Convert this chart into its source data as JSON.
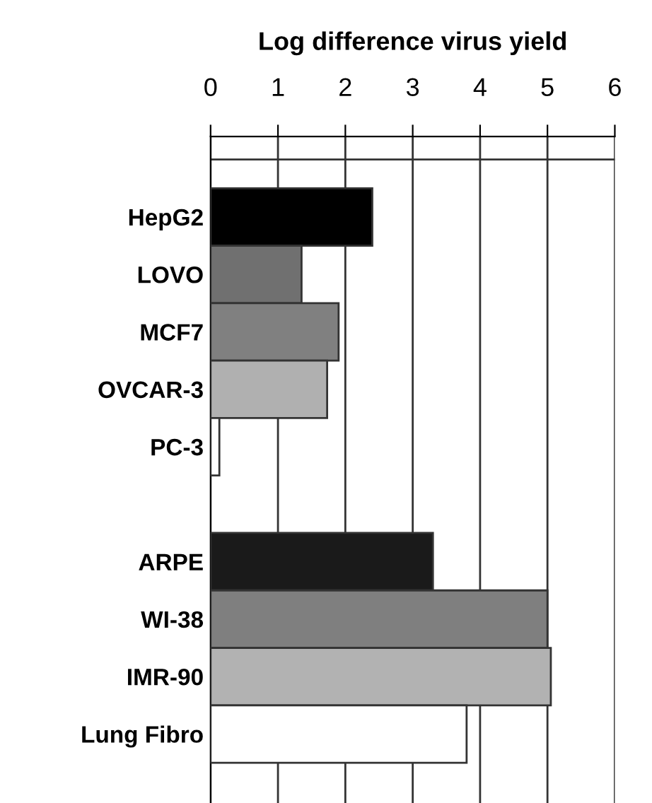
{
  "chart_data": {
    "type": "bar",
    "orientation": "horizontal",
    "xlabel": "Log difference virus yield",
    "categories": [
      "HepG2",
      "LOVO",
      "MCF7",
      "OVCAR-3",
      "PC-3",
      null,
      "ARPE",
      "WI-38",
      "IMR-90",
      "Lung Fibro"
    ],
    "values": [
      2.4,
      1.35,
      1.9,
      1.73,
      0.13,
      null,
      3.3,
      5.0,
      5.05,
      3.8
    ],
    "colors": [
      "#000000",
      "#707070",
      "#808080",
      "#b0b0b0",
      "#ffffff",
      "#ffffff",
      "#1a1a1a",
      "#7f7f7f",
      "#b2b2b2",
      "#ffffff"
    ],
    "xlim": [
      0,
      6
    ],
    "xticks": [
      0,
      1,
      2,
      3,
      4,
      5,
      6
    ],
    "grid": "x"
  }
}
